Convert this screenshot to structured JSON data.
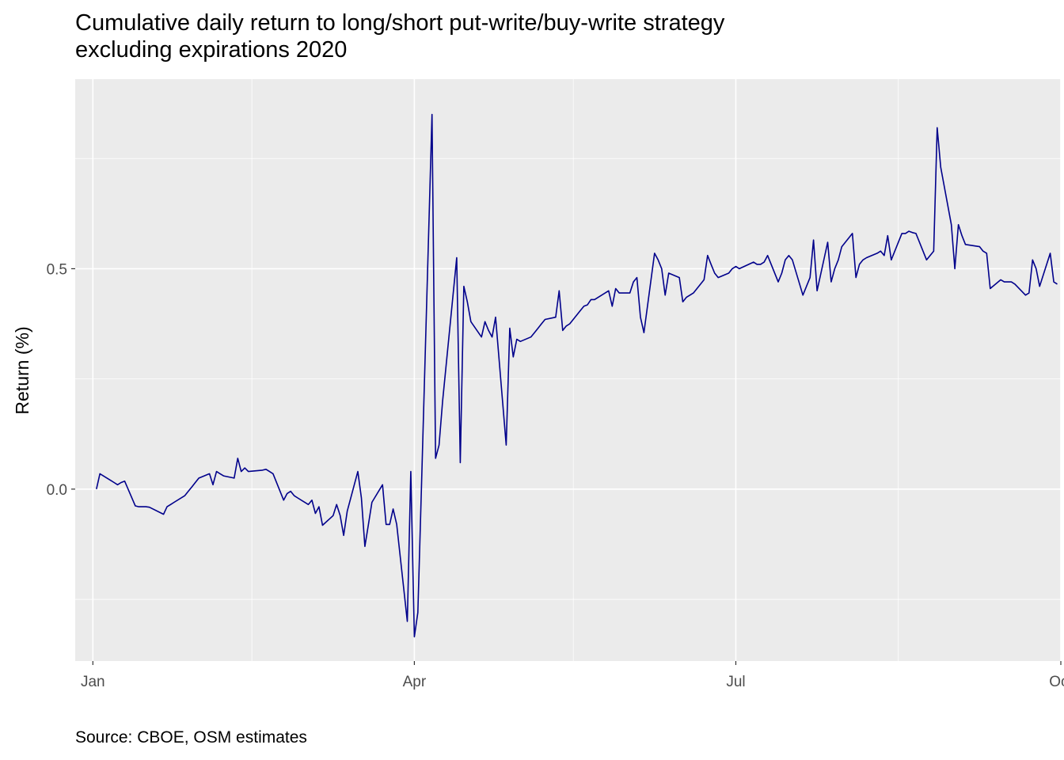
{
  "chart_data": {
    "type": "line",
    "title": [
      "Cumulative daily return to long/short put-write/buy-write strategy",
      "excluding expirations 2020"
    ],
    "xlabel": "",
    "ylabel": "Return (%)",
    "caption": "Source: CBOE, OSM estimates",
    "line_color": "#00008b",
    "panel_color": "#ebebeb",
    "grid_color": "#ffffff",
    "xlim": [
      "2019-12-27",
      "2020-10-01"
    ],
    "ylim": [
      -0.39,
      0.93
    ],
    "x_ticks": [
      {
        "value": "2020-01-01",
        "label": "Jan"
      },
      {
        "value": "2020-04-01",
        "label": "Apr"
      },
      {
        "value": "2020-07-01",
        "label": "Jul"
      },
      {
        "value": "2020-10-01",
        "label": "Oct"
      }
    ],
    "x_minor_ticks": [
      "2020-02-15",
      "2020-05-16",
      "2020-08-16"
    ],
    "y_ticks": [
      {
        "value": 0.0,
        "label": "0.0"
      },
      {
        "value": 0.5,
        "label": "0.5"
      }
    ],
    "y_minor_ticks": [
      -0.25,
      0.25,
      0.75
    ],
    "series": [
      {
        "points": [
          [
            "2020-01-02",
            0.0
          ],
          [
            "2020-01-03",
            0.035
          ],
          [
            "2020-01-06",
            0.02
          ],
          [
            "2020-01-07",
            0.015
          ],
          [
            "2020-01-08",
            0.01
          ],
          [
            "2020-01-09",
            0.015
          ],
          [
            "2020-01-10",
            0.018
          ],
          [
            "2020-01-13",
            -0.038
          ],
          [
            "2020-01-14",
            -0.04
          ],
          [
            "2020-01-15",
            -0.04
          ],
          [
            "2020-01-16",
            -0.04
          ],
          [
            "2020-01-17",
            -0.041
          ],
          [
            "2020-01-21",
            -0.057
          ],
          [
            "2020-01-22",
            -0.04
          ],
          [
            "2020-01-23",
            -0.035
          ],
          [
            "2020-01-24",
            -0.03
          ],
          [
            "2020-01-27",
            -0.015
          ],
          [
            "2020-01-28",
            -0.005
          ],
          [
            "2020-01-29",
            0.005
          ],
          [
            "2020-01-30",
            0.015
          ],
          [
            "2020-01-31",
            0.025
          ],
          [
            "2020-02-03",
            0.035
          ],
          [
            "2020-02-04",
            0.01
          ],
          [
            "2020-02-05",
            0.04
          ],
          [
            "2020-02-06",
            0.035
          ],
          [
            "2020-02-07",
            0.03
          ],
          [
            "2020-02-10",
            0.025
          ],
          [
            "2020-02-11",
            0.07
          ],
          [
            "2020-02-12",
            0.04
          ],
          [
            "2020-02-13",
            0.048
          ],
          [
            "2020-02-14",
            0.04
          ],
          [
            "2020-02-18",
            0.043
          ],
          [
            "2020-02-19",
            0.045
          ],
          [
            "2020-02-20",
            0.04
          ],
          [
            "2020-02-21",
            0.035
          ],
          [
            "2020-02-24",
            -0.025
          ],
          [
            "2020-02-25",
            -0.01
          ],
          [
            "2020-02-26",
            -0.005
          ],
          [
            "2020-02-27",
            -0.015
          ],
          [
            "2020-02-28",
            -0.02
          ],
          [
            "2020-03-02",
            -0.035
          ],
          [
            "2020-03-03",
            -0.025
          ],
          [
            "2020-03-04",
            -0.055
          ],
          [
            "2020-03-05",
            -0.04
          ],
          [
            "2020-03-06",
            -0.082
          ],
          [
            "2020-03-09",
            -0.06
          ],
          [
            "2020-03-10",
            -0.035
          ],
          [
            "2020-03-11",
            -0.06
          ],
          [
            "2020-03-12",
            -0.105
          ],
          [
            "2020-03-13",
            -0.05
          ],
          [
            "2020-03-16",
            0.04
          ],
          [
            "2020-03-17",
            -0.02
          ],
          [
            "2020-03-18",
            -0.13
          ],
          [
            "2020-03-19",
            -0.08
          ],
          [
            "2020-03-20",
            -0.03
          ],
          [
            "2020-03-23",
            0.01
          ],
          [
            "2020-03-24",
            -0.08
          ],
          [
            "2020-03-25",
            -0.08
          ],
          [
            "2020-03-26",
            -0.045
          ],
          [
            "2020-03-27",
            -0.08
          ],
          [
            "2020-03-30",
            -0.3
          ],
          [
            "2020-03-31",
            0.04
          ],
          [
            "2020-04-01",
            -0.335
          ],
          [
            "2020-04-02",
            -0.28
          ],
          [
            "2020-04-03",
            0.0
          ],
          [
            "2020-04-06",
            0.85
          ],
          [
            "2020-04-07",
            0.07
          ],
          [
            "2020-04-08",
            0.1
          ],
          [
            "2020-04-09",
            0.2
          ],
          [
            "2020-04-13",
            0.525
          ],
          [
            "2020-04-14",
            0.06
          ],
          [
            "2020-04-15",
            0.46
          ],
          [
            "2020-04-16",
            0.425
          ],
          [
            "2020-04-17",
            0.38
          ],
          [
            "2020-04-20",
            0.345
          ],
          [
            "2020-04-21",
            0.38
          ],
          [
            "2020-04-22",
            0.36
          ],
          [
            "2020-04-23",
            0.345
          ],
          [
            "2020-04-24",
            0.39
          ],
          [
            "2020-04-27",
            0.1
          ],
          [
            "2020-04-28",
            0.365
          ],
          [
            "2020-04-29",
            0.3
          ],
          [
            "2020-04-30",
            0.34
          ],
          [
            "2020-05-01",
            0.335
          ],
          [
            "2020-05-04",
            0.345
          ],
          [
            "2020-05-05",
            0.355
          ],
          [
            "2020-05-06",
            0.365
          ],
          [
            "2020-05-07",
            0.375
          ],
          [
            "2020-05-08",
            0.385
          ],
          [
            "2020-05-11",
            0.39
          ],
          [
            "2020-05-12",
            0.45
          ],
          [
            "2020-05-13",
            0.36
          ],
          [
            "2020-05-14",
            0.37
          ],
          [
            "2020-05-15",
            0.375
          ],
          [
            "2020-05-18",
            0.405
          ],
          [
            "2020-05-19",
            0.415
          ],
          [
            "2020-05-20",
            0.418
          ],
          [
            "2020-05-21",
            0.43
          ],
          [
            "2020-05-22",
            0.43
          ],
          [
            "2020-05-26",
            0.45
          ],
          [
            "2020-05-27",
            0.415
          ],
          [
            "2020-05-28",
            0.455
          ],
          [
            "2020-05-29",
            0.445
          ],
          [
            "2020-06-01",
            0.445
          ],
          [
            "2020-06-02",
            0.47
          ],
          [
            "2020-06-03",
            0.48
          ],
          [
            "2020-06-04",
            0.39
          ],
          [
            "2020-06-05",
            0.355
          ],
          [
            "2020-06-08",
            0.535
          ],
          [
            "2020-06-09",
            0.52
          ],
          [
            "2020-06-10",
            0.5
          ],
          [
            "2020-06-11",
            0.44
          ],
          [
            "2020-06-12",
            0.49
          ],
          [
            "2020-06-15",
            0.48
          ],
          [
            "2020-06-16",
            0.425
          ],
          [
            "2020-06-17",
            0.435
          ],
          [
            "2020-06-18",
            0.44
          ],
          [
            "2020-06-19",
            0.445
          ],
          [
            "2020-06-22",
            0.475
          ],
          [
            "2020-06-23",
            0.53
          ],
          [
            "2020-06-24",
            0.51
          ],
          [
            "2020-06-25",
            0.49
          ],
          [
            "2020-06-26",
            0.48
          ],
          [
            "2020-06-29",
            0.49
          ],
          [
            "2020-06-30",
            0.5
          ],
          [
            "2020-07-01",
            0.505
          ],
          [
            "2020-07-02",
            0.5
          ],
          [
            "2020-07-06",
            0.515
          ],
          [
            "2020-07-07",
            0.51
          ],
          [
            "2020-07-08",
            0.51
          ],
          [
            "2020-07-09",
            0.515
          ],
          [
            "2020-07-10",
            0.53
          ],
          [
            "2020-07-13",
            0.47
          ],
          [
            "2020-07-14",
            0.49
          ],
          [
            "2020-07-15",
            0.52
          ],
          [
            "2020-07-16",
            0.53
          ],
          [
            "2020-07-17",
            0.52
          ],
          [
            "2020-07-20",
            0.44
          ],
          [
            "2020-07-21",
            0.46
          ],
          [
            "2020-07-22",
            0.48
          ],
          [
            "2020-07-23",
            0.565
          ],
          [
            "2020-07-24",
            0.45
          ],
          [
            "2020-07-27",
            0.56
          ],
          [
            "2020-07-28",
            0.47
          ],
          [
            "2020-07-29",
            0.5
          ],
          [
            "2020-07-30",
            0.52
          ],
          [
            "2020-07-31",
            0.55
          ],
          [
            "2020-08-03",
            0.58
          ],
          [
            "2020-08-04",
            0.48
          ],
          [
            "2020-08-05",
            0.51
          ],
          [
            "2020-08-06",
            0.52
          ],
          [
            "2020-08-07",
            0.525
          ],
          [
            "2020-08-10",
            0.535
          ],
          [
            "2020-08-11",
            0.54
          ],
          [
            "2020-08-12",
            0.53
          ],
          [
            "2020-08-13",
            0.575
          ],
          [
            "2020-08-14",
            0.52
          ],
          [
            "2020-08-17",
            0.58
          ],
          [
            "2020-08-18",
            0.58
          ],
          [
            "2020-08-19",
            0.585
          ],
          [
            "2020-08-20",
            0.582
          ],
          [
            "2020-08-21",
            0.58
          ],
          [
            "2020-08-24",
            0.52
          ],
          [
            "2020-08-25",
            0.53
          ],
          [
            "2020-08-26",
            0.54
          ],
          [
            "2020-08-27",
            0.82
          ],
          [
            "2020-08-28",
            0.73
          ],
          [
            "2020-08-31",
            0.6
          ],
          [
            "2020-09-01",
            0.5
          ],
          [
            "2020-09-02",
            0.6
          ],
          [
            "2020-09-03",
            0.575
          ],
          [
            "2020-09-04",
            0.555
          ],
          [
            "2020-09-08",
            0.55
          ],
          [
            "2020-09-09",
            0.54
          ],
          [
            "2020-09-10",
            0.535
          ],
          [
            "2020-09-11",
            0.455
          ],
          [
            "2020-09-14",
            0.475
          ],
          [
            "2020-09-15",
            0.47
          ],
          [
            "2020-09-16",
            0.47
          ],
          [
            "2020-09-17",
            0.47
          ],
          [
            "2020-09-18",
            0.465
          ],
          [
            "2020-09-21",
            0.44
          ],
          [
            "2020-09-22",
            0.445
          ],
          [
            "2020-09-23",
            0.52
          ],
          [
            "2020-09-24",
            0.5
          ],
          [
            "2020-09-25",
            0.46
          ],
          [
            "2020-09-28",
            0.535
          ],
          [
            "2020-09-29",
            0.47
          ],
          [
            "2020-09-30",
            0.465
          ]
        ]
      }
    ]
  }
}
